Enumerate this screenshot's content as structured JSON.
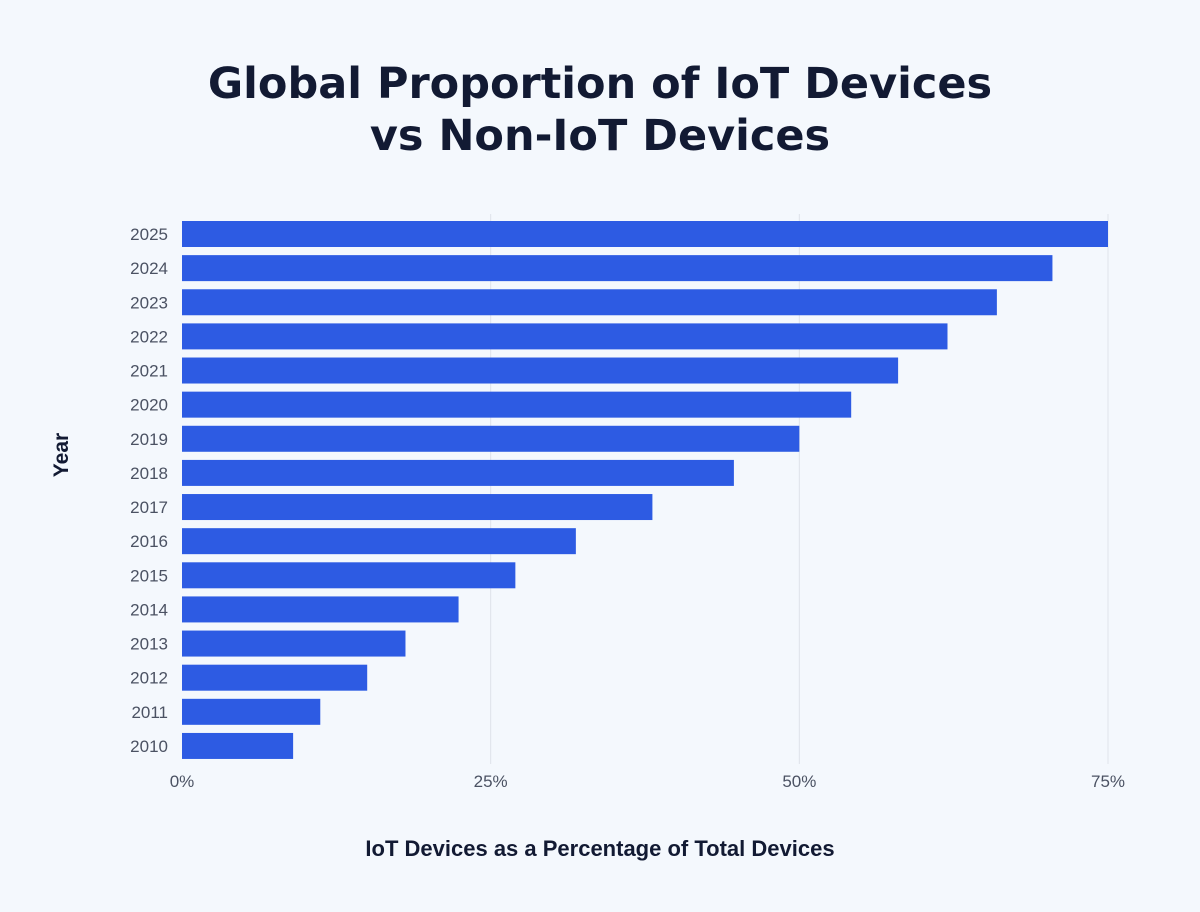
{
  "chart_data": {
    "type": "bar",
    "orientation": "horizontal",
    "title_lines": [
      "Global Proportion of IoT Devices",
      "vs Non-IoT Devices"
    ],
    "xlabel": "IoT Devices as a Percentage of Total Devices",
    "ylabel": "Year",
    "categories": [
      "2025",
      "2024",
      "2023",
      "2022",
      "2021",
      "2020",
      "2019",
      "2018",
      "2017",
      "2016",
      "2015",
      "2014",
      "2013",
      "2012",
      "2011",
      "2010"
    ],
    "values": [
      75,
      70.5,
      66,
      62,
      58,
      54.2,
      50,
      44.7,
      38.1,
      31.9,
      27,
      22.4,
      18.1,
      15,
      11.2,
      9
    ],
    "xlim": [
      0,
      75
    ],
    "xticks": [
      0,
      25,
      50,
      75
    ],
    "xtick_labels": [
      "0%",
      "25%",
      "50%",
      "75%"
    ],
    "bar_color": "#2d5be3",
    "grid": "vertical"
  }
}
